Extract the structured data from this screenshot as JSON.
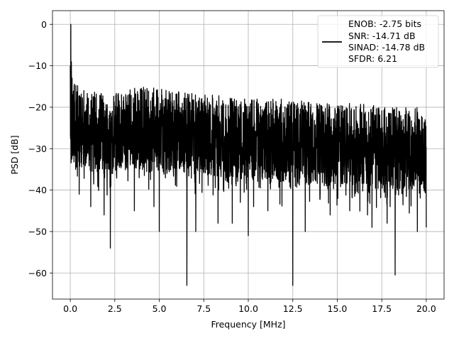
{
  "chart_data": {
    "type": "line",
    "xlabel": "Frequency [MHz]",
    "ylabel": "PSD [dB]",
    "xlim": [
      -1.0,
      21.0
    ],
    "ylim": [
      -66.3,
      3.3
    ],
    "xticks": [
      0.0,
      2.5,
      5.0,
      7.5,
      10.0,
      12.5,
      15.0,
      17.5,
      20.0
    ],
    "xtick_labels": [
      "0.0",
      "2.5",
      "5.0",
      "7.5",
      "10.0",
      "12.5",
      "15.0",
      "17.5",
      "20.0"
    ],
    "yticks": [
      0,
      -10,
      -20,
      -30,
      -40,
      -50,
      -60
    ],
    "ytick_labels": [
      "0",
      "−10",
      "−20",
      "−30",
      "−40",
      "−50",
      "−60"
    ],
    "grid": true,
    "legend_position": "top-right",
    "legend_lines": [
      "ENOB: -2.75 bits",
      "SNR: -14.71 dB",
      "SINAD: -14.78 dB",
      "SFDR: 6.21"
    ],
    "series": [
      {
        "color": "#000000",
        "noise_floor_db": -25,
        "x": [
          0.0,
          0.03,
          0.06,
          0.1,
          0.15,
          0.2,
          0.25,
          0.3,
          0.5,
          1.15,
          1.9,
          2.25,
          3.6,
          4.7,
          5.0,
          6.55,
          7.05,
          8.3,
          9.1,
          10.0,
          10.3,
          11.1,
          12.5,
          13.2,
          14.6,
          15.7,
          16.7,
          16.95,
          17.8,
          18.25,
          19.5,
          20.0
        ],
        "y": [
          -10,
          0,
          -9,
          -13,
          -17,
          -20,
          -30,
          -35,
          -41,
          -44,
          -46,
          -54,
          -45,
          -44,
          -50,
          -63,
          -50,
          -48,
          -48,
          -51,
          -44,
          -45,
          -63,
          -50,
          -46,
          -45,
          -46,
          -49,
          -48,
          -60.5,
          -50,
          -49
        ],
        "upper_envelope": [
          -14,
          -17,
          -15,
          -16,
          -17,
          -18,
          -18,
          -19,
          -19,
          -20,
          -20
        ]
      }
    ]
  }
}
